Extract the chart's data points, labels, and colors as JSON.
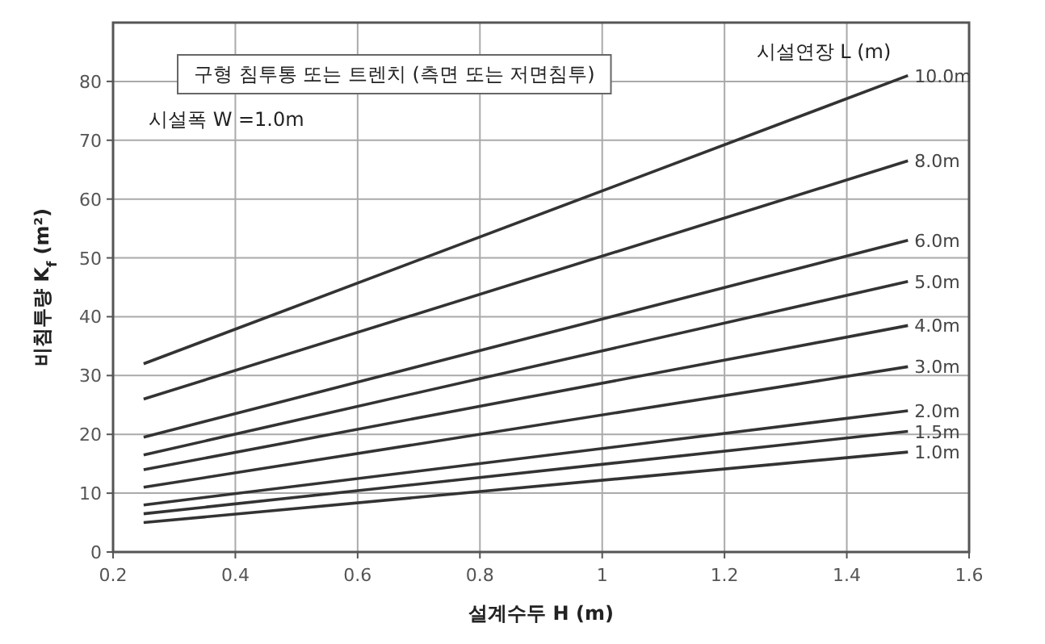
{
  "chart_data": {
    "type": "line",
    "title": "구형 침투통 또는 트렌치 (측면 또는 저면침투)",
    "subtitle": "시설폭 W =1.0m",
    "legend_title": "시설연장 L (m)",
    "xlabel": "설계수두 H (m)",
    "ylabel": "비침투량 K$_{f}$ (m²)",
    "x": [
      0.25,
      1.5
    ],
    "xlim": [
      0.2,
      1.6
    ],
    "ylim": [
      0,
      90
    ],
    "xticks": [
      0.2,
      0.4,
      0.6,
      0.8,
      1,
      1.2,
      1.4,
      1.6
    ],
    "yticks": [
      0,
      10,
      20,
      30,
      40,
      50,
      60,
      70,
      80
    ],
    "grid": true,
    "series": [
      {
        "name": "10.0m",
        "color": "#333333",
        "values": [
          32,
          81
        ]
      },
      {
        "name": "8.0m",
        "color": "#333333",
        "values": [
          26,
          66.5
        ]
      },
      {
        "name": "6.0m",
        "color": "#333333",
        "values": [
          19.5,
          53
        ]
      },
      {
        "name": "5.0m",
        "color": "#333333",
        "values": [
          16.5,
          46
        ]
      },
      {
        "name": "4.0m",
        "color": "#333333",
        "values": [
          14,
          38.5
        ]
      },
      {
        "name": "3.0m",
        "color": "#333333",
        "values": [
          11,
          31.5
        ]
      },
      {
        "name": "2.0m",
        "color": "#333333",
        "values": [
          8,
          24
        ]
      },
      {
        "name": "1.5m",
        "color": "#333333",
        "values": [
          6.5,
          20.5
        ]
      },
      {
        "name": "1.0m",
        "color": "#333333",
        "values": [
          5,
          17
        ]
      }
    ]
  }
}
